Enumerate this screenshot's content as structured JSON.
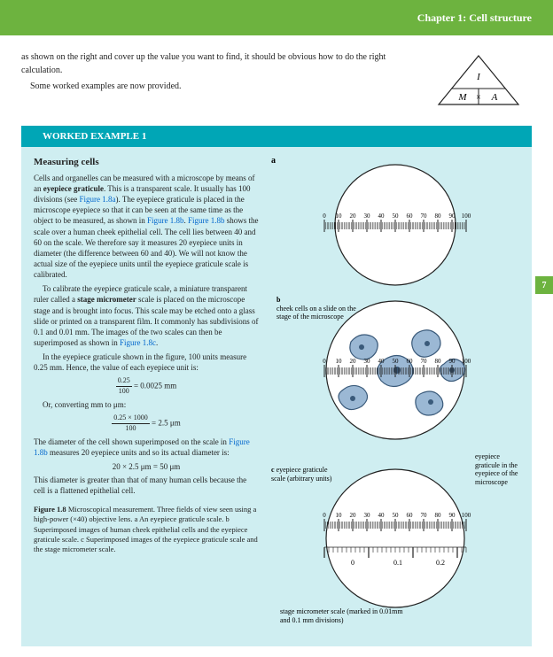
{
  "header": {
    "chapter": "Chapter 1: Cell structure"
  },
  "intro": {
    "p1": "as shown on the right and cover up the value you want to find, it should be obvious how to do the right calculation.",
    "p2": "Some worked examples are now provided."
  },
  "triangle": {
    "top": "I",
    "left": "M",
    "mid": "×",
    "right": "A"
  },
  "worked": {
    "title": "WORKED EXAMPLE 1",
    "subtitle": "Measuring cells",
    "p1a": "Cells and organelles can be measured with a microscope by means of an ",
    "p1b": "eyepiece graticule",
    "p1c": ". This is a transparent scale. It usually has 100 divisions (see ",
    "p1link1": "Figure 1.8a",
    "p1d": "). The eyepiece graticule is placed in the microscope eyepiece so that it can be seen at the same time as the object to be measured, as shown in ",
    "p1link2": "Figure 1.8b",
    "p1e": ". ",
    "p1link3": "Figure 1.8b",
    "p1f": " shows the scale over a human cheek epithelial cell. The cell lies between 40 and 60 on the scale. We therefore say it measures 20 eyepiece units in diameter (the difference between 60 and 40). We will not know the actual size of the eyepiece units until the eyepiece graticule scale is calibrated.",
    "p2a": "To calibrate the eyepiece graticule scale, a miniature transparent ruler called a ",
    "p2b": "stage micrometer",
    "p2c": " scale is placed on the microscope stage and is brought into focus. This scale may be etched onto a glass slide or printed on a transparent film. It commonly has subdivisions of 0.1 and 0.01 mm. The images of the two scales can then be superimposed as shown in ",
    "p2link": "Figure 1.8c",
    "p2d": ".",
    "p3": "In the eyepiece graticule shown in the figure, 100 units measure 0.25 mm. Hence, the value of each eyepiece unit is:",
    "eq1_num": "0.25",
    "eq1_den": "100",
    "eq1_res": " = 0.0025 mm",
    "p4": "Or, converting mm to μm:",
    "eq2_num": "0.25 × 1000",
    "eq2_den": "100",
    "eq2_res": " = 2.5 μm",
    "p5a": "The diameter of the cell shown superimposed on the scale in ",
    "p5link": "Figure 1.8b",
    "p5b": " measures 20 eyepiece units and so its actual diameter is:",
    "eq3": "20 × 2.5 μm = 50 μm",
    "p6": "This diameter is greater than that of many human cells because the cell is a flattened epithelial cell.",
    "caption_bold": "Figure 1.8",
    "caption": "  Microscopical measurement. Three fields of view seen using a high-power (×40) objective lens. a An eyepiece graticule scale. b Superimposed images of human cheek epithelial cells and the eyepiece graticule scale. c Superimposed images of the eyepiece graticule scale and the stage micrometer scale."
  },
  "fig": {
    "a": "a",
    "b": "b",
    "c": "c",
    "ruler_labels": [
      "0",
      "10",
      "20",
      "30",
      "40",
      "50",
      "60",
      "70",
      "80",
      "90",
      "100"
    ],
    "b_note": "cheek cells on a slide on the stage of the microscope",
    "c_left": "eyepiece graticule scale (arbitrary units)",
    "c_right": "eyepiece graticule in the eyepiece of the microscope",
    "c_bottom": "stage micrometer scale (marked in 0.01mm and 0.1 mm divisions)",
    "c_tick1": "0",
    "c_tick2": "0.1",
    "c_tick3": "0.2"
  },
  "page": {
    "num": "7"
  },
  "colors": {
    "green": "#6db33f",
    "teal": "#00a6b6",
    "tealLight": "#cfeef1",
    "cell": "#9bb8d4",
    "cellStroke": "#3a5a7a",
    "link": "#0066cc"
  }
}
